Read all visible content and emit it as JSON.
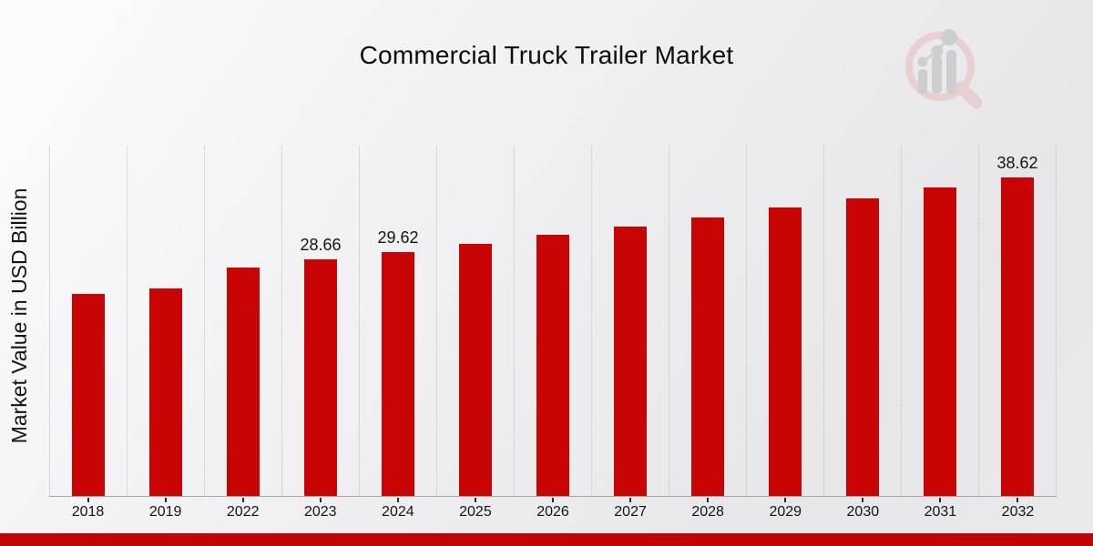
{
  "title": "Commercial Truck Trailer Market",
  "y_axis_label": "Market Value in USD Billion",
  "watermark_icon": "market-research-future-logo",
  "colors": {
    "bar": "#c90404",
    "bottom_strip": "#bf0505",
    "grid_line": "#bfbfc3",
    "axis_line": "#a6a6aa",
    "tick": "#2b2b2b",
    "title_text": "#0d0d0d",
    "label_text": "#141414",
    "background_light": "#fcfcfd",
    "background_dark": "#e7e7e9",
    "watermark_pink": "#e8cfd0",
    "watermark_gray": "#cdced2"
  },
  "chart_data": {
    "type": "bar",
    "title": "Commercial Truck Trailer Market",
    "xlabel": "",
    "ylabel": "Market Value in USD Billion",
    "categories": [
      "2018",
      "2019",
      "2022",
      "2023",
      "2024",
      "2025",
      "2026",
      "2027",
      "2028",
      "2029",
      "2030",
      "2031",
      "2032"
    ],
    "values": [
      24.55,
      25.11,
      27.73,
      28.66,
      29.62,
      30.62,
      31.65,
      32.72,
      33.82,
      34.96,
      36.14,
      37.36,
      38.62
    ],
    "data_labels": {
      "2023": "28.66",
      "2024": "29.62",
      "2032": "38.62"
    },
    "ylim": [
      0,
      42.6
    ],
    "grid": "vertical dotted lines between categories",
    "legend": "none",
    "bar_color": "#c90404"
  }
}
